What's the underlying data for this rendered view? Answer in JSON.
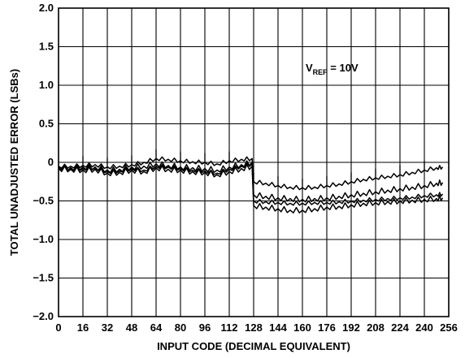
{
  "chart_data": {
    "type": "line",
    "title": "",
    "xlabel": "INPUT CODE (DECIMAL EQUIVALENT)",
    "ylabel": "TOTAL UNADJUSTED ERROR (LSBs)",
    "xlim": [
      0,
      256
    ],
    "ylim": [
      -2.0,
      2.0
    ],
    "grid": true,
    "xticks": [
      0,
      16,
      32,
      48,
      64,
      80,
      96,
      112,
      128,
      144,
      160,
      176,
      192,
      208,
      224,
      240,
      256
    ],
    "xtick_labels": [
      "0",
      "16",
      "32",
      "48",
      "64",
      "80",
      "96",
      "112",
      "128",
      "144",
      "160",
      "176",
      "192",
      "208",
      "224",
      "240",
      "256"
    ],
    "yticks": [
      2.0,
      1.5,
      1.0,
      0.5,
      0,
      -0.5,
      -1.0,
      -1.5,
      -2.0
    ],
    "ytick_labels": [
      "2.0",
      "1.5",
      "1.0",
      "0.5",
      "0",
      "−0.5",
      "−1.0",
      "−1.5",
      "−2.0"
    ],
    "annotation": {
      "main": "V",
      "sub": "REF",
      "rest": " = 10V"
    },
    "series": [
      {
        "x": [
          0,
          8,
          16,
          24,
          32,
          40,
          48,
          56,
          64,
          72,
          80,
          88,
          96,
          104,
          112,
          120,
          127,
          128,
          136,
          144,
          152,
          160,
          168,
          176,
          184,
          192,
          200,
          208,
          216,
          224,
          232,
          240,
          248,
          252
        ],
        "values": [
          -0.05,
          -0.05,
          -0.04,
          -0.03,
          -0.06,
          -0.05,
          -0.03,
          0.0,
          0.05,
          0.04,
          0.02,
          0.01,
          0.0,
          -0.02,
          0.02,
          0.04,
          0.05,
          -0.25,
          -0.27,
          -0.3,
          -0.32,
          -0.33,
          -0.32,
          -0.3,
          -0.28,
          -0.25,
          -0.22,
          -0.2,
          -0.18,
          -0.16,
          -0.13,
          -0.1,
          -0.07,
          -0.06
        ]
      },
      {
        "x": [
          0,
          8,
          16,
          24,
          32,
          40,
          48,
          56,
          64,
          72,
          80,
          88,
          96,
          104,
          112,
          120,
          127,
          128,
          136,
          144,
          152,
          160,
          168,
          176,
          184,
          192,
          200,
          208,
          216,
          224,
          232,
          240,
          248,
          252
        ],
        "values": [
          -0.07,
          -0.07,
          -0.06,
          -0.06,
          -0.1,
          -0.09,
          -0.06,
          -0.05,
          -0.02,
          -0.04,
          -0.06,
          -0.07,
          -0.08,
          -0.1,
          -0.06,
          -0.03,
          0.0,
          -0.42,
          -0.44,
          -0.46,
          -0.47,
          -0.48,
          -0.47,
          -0.46,
          -0.44,
          -0.42,
          -0.4,
          -0.38,
          -0.36,
          -0.34,
          -0.32,
          -0.3,
          -0.27,
          -0.26
        ]
      },
      {
        "x": [
          0,
          8,
          16,
          24,
          32,
          40,
          48,
          56,
          64,
          72,
          80,
          88,
          96,
          104,
          112,
          120,
          127,
          128,
          136,
          144,
          152,
          160,
          168,
          176,
          184,
          192,
          200,
          208,
          216,
          224,
          232,
          240,
          248,
          252
        ],
        "values": [
          -0.06,
          -0.08,
          -0.08,
          -0.07,
          -0.12,
          -0.11,
          -0.08,
          -0.1,
          -0.05,
          -0.06,
          -0.08,
          -0.1,
          -0.11,
          -0.14,
          -0.09,
          -0.05,
          -0.02,
          -0.5,
          -0.51,
          -0.52,
          -0.53,
          -0.53,
          -0.52,
          -0.52,
          -0.51,
          -0.5,
          -0.49,
          -0.48,
          -0.47,
          -0.46,
          -0.45,
          -0.43,
          -0.42,
          -0.41
        ]
      },
      {
        "x": [
          0,
          8,
          16,
          24,
          32,
          40,
          48,
          56,
          64,
          72,
          80,
          88,
          96,
          104,
          112,
          120,
          127,
          128,
          136,
          144,
          152,
          160,
          168,
          176,
          184,
          192,
          200,
          208,
          216,
          224,
          232,
          240,
          248,
          252
        ],
        "values": [
          -0.08,
          -0.09,
          -0.1,
          -0.09,
          -0.14,
          -0.13,
          -0.1,
          -0.12,
          -0.07,
          -0.09,
          -0.1,
          -0.12,
          -0.13,
          -0.16,
          -0.12,
          -0.08,
          -0.05,
          -0.56,
          -0.58,
          -0.6,
          -0.62,
          -0.62,
          -0.6,
          -0.58,
          -0.57,
          -0.55,
          -0.53,
          -0.52,
          -0.51,
          -0.5,
          -0.49,
          -0.48,
          -0.47,
          -0.46
        ]
      }
    ]
  }
}
